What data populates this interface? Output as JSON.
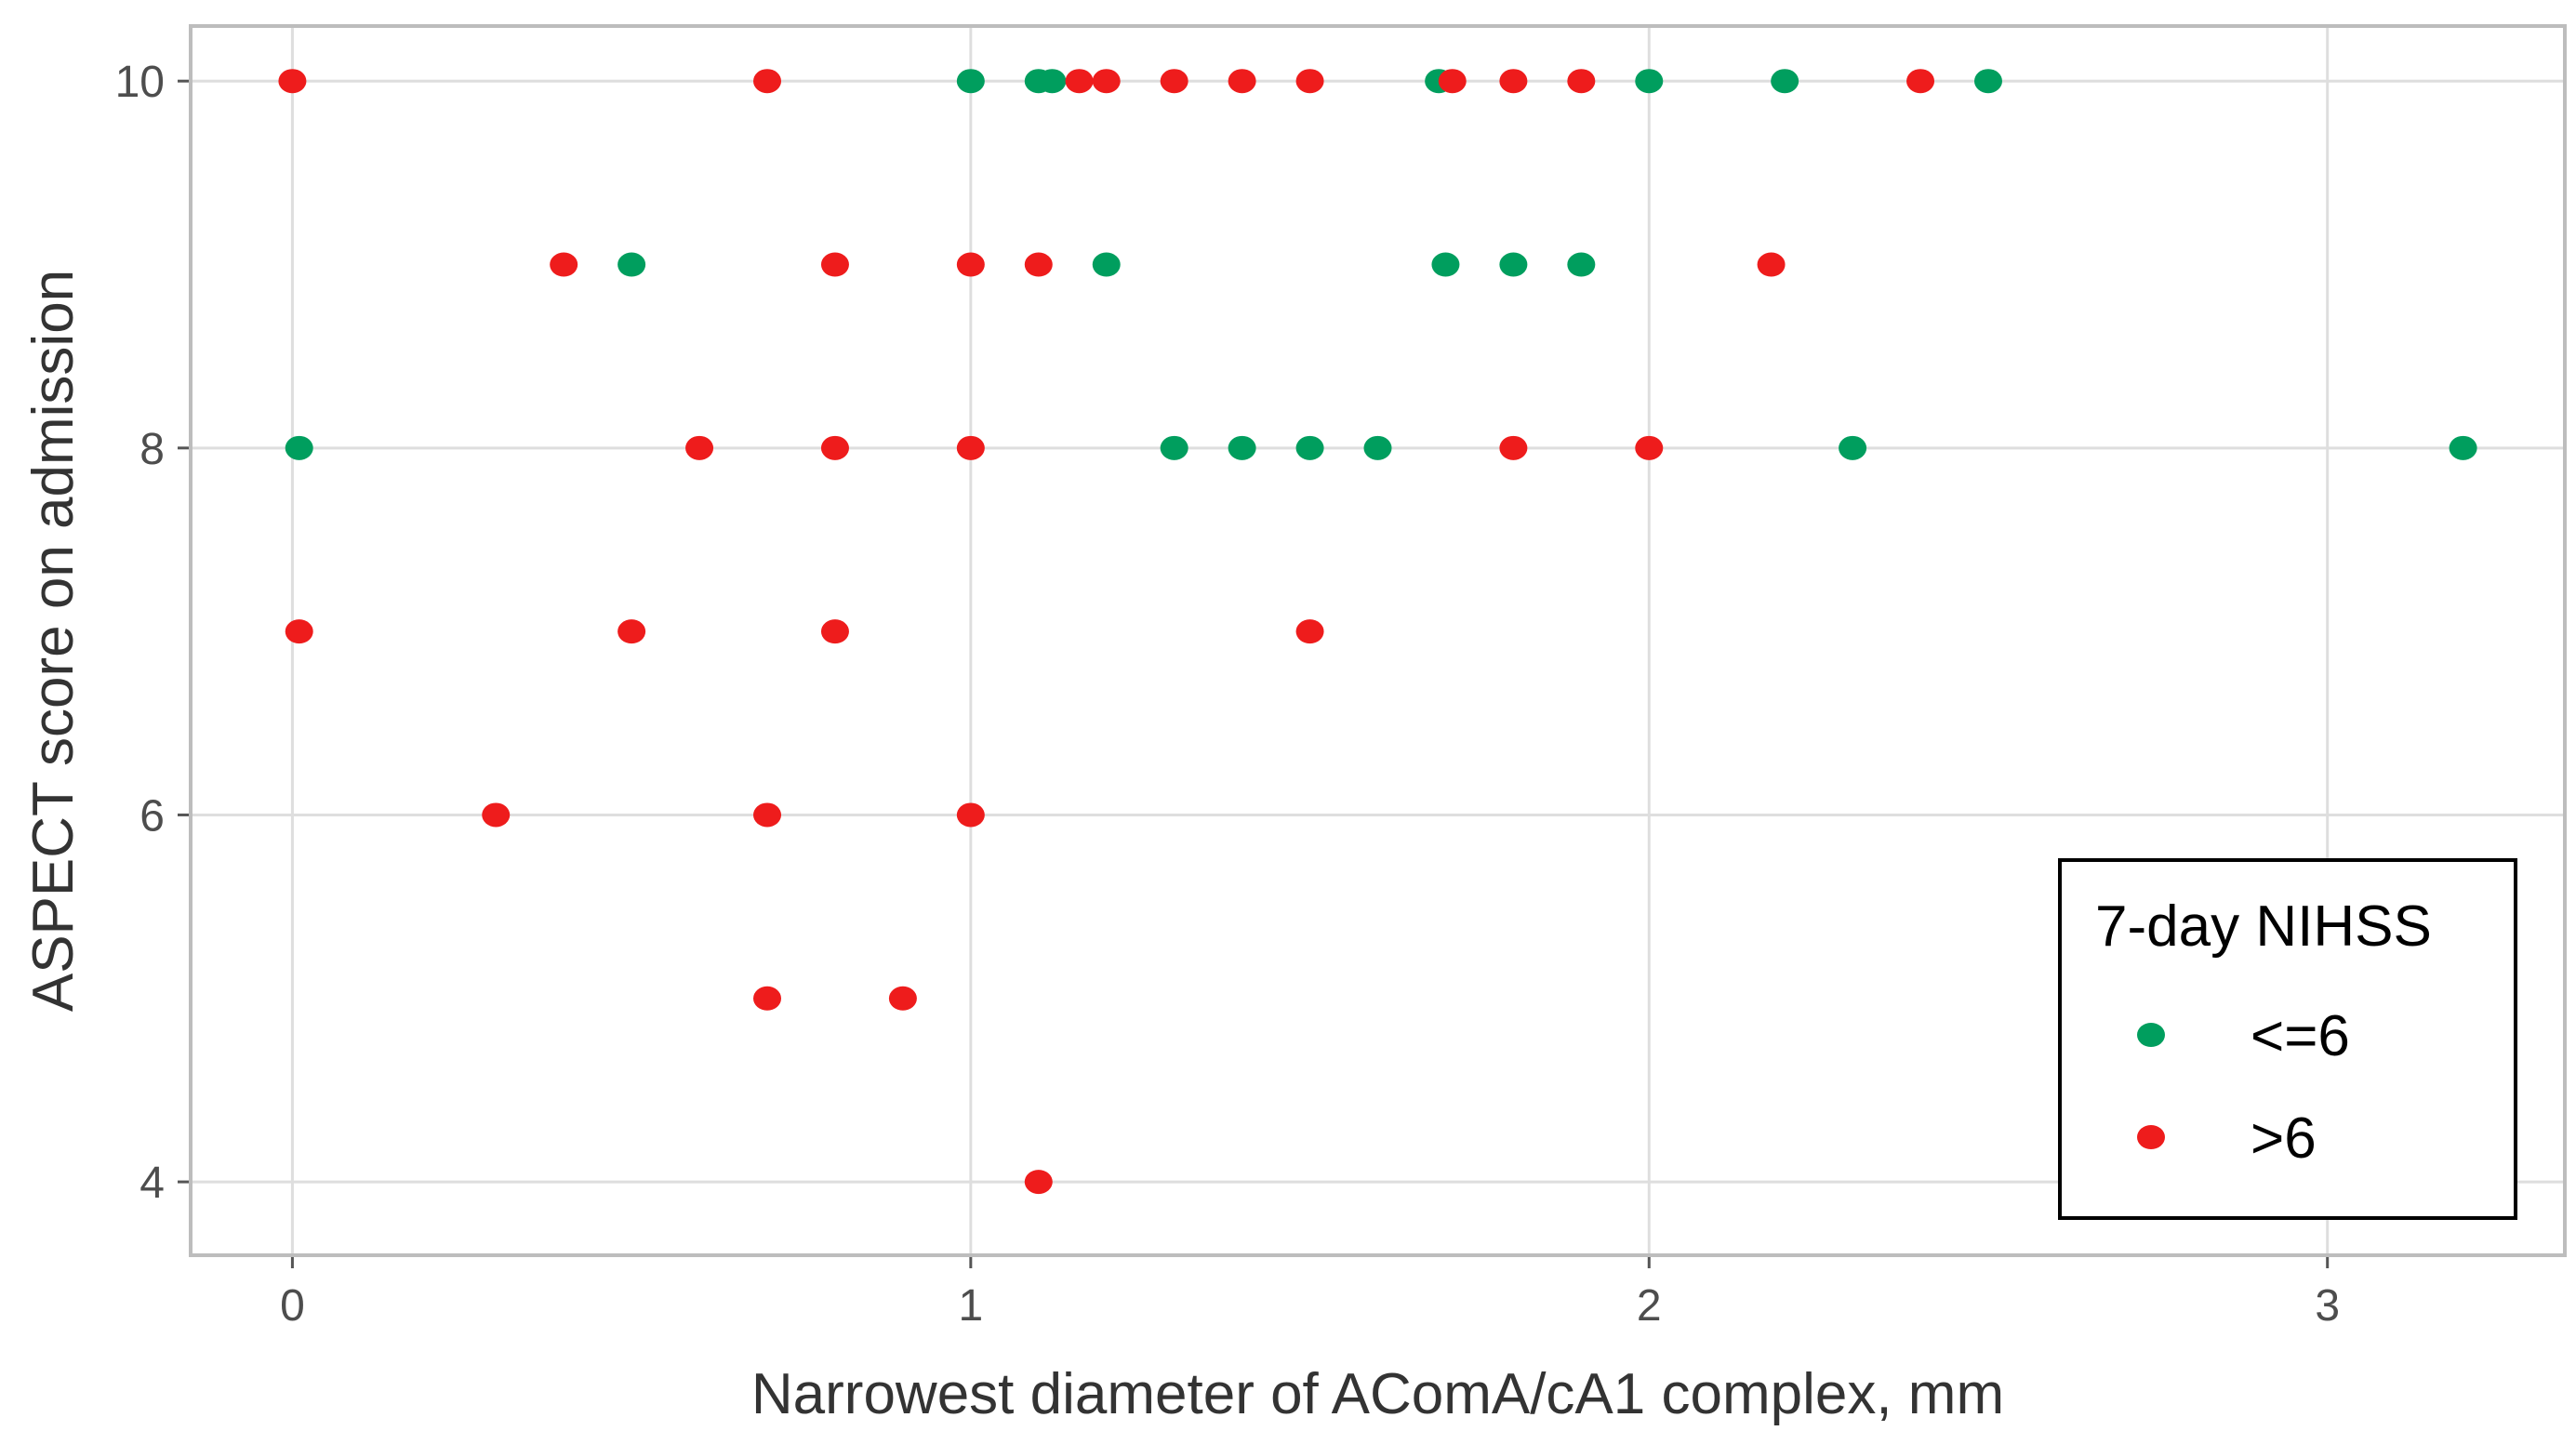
{
  "chart_data": {
    "type": "scatter",
    "title": "",
    "xlabel": "Narrowest diameter of AComA/cA1 complex, mm",
    "ylabel": "ASPECT score on admission",
    "xlim": [
      -0.15,
      3.35
    ],
    "ylim": [
      3.6,
      10.3
    ],
    "x_ticks": [
      0,
      1,
      2,
      3
    ],
    "y_ticks": [
      4,
      6,
      8,
      10
    ],
    "x_tick_labels": [
      "0",
      "1",
      "2",
      "3"
    ],
    "y_tick_labels": [
      "4",
      "6",
      "8",
      "10"
    ],
    "grid": true,
    "legend": {
      "title": "7-day NIHSS",
      "position": "bottom-right"
    },
    "series": [
      {
        "name": "<=6",
        "color": "#009e5e",
        "points": [
          [
            1.0,
            10
          ],
          [
            1.1,
            10
          ],
          [
            1.12,
            10
          ],
          [
            1.69,
            10
          ],
          [
            2.0,
            10
          ],
          [
            2.2,
            10
          ],
          [
            2.5,
            10
          ],
          [
            0.5,
            9
          ],
          [
            1.2,
            9
          ],
          [
            1.7,
            9
          ],
          [
            1.8,
            9
          ],
          [
            1.9,
            9
          ],
          [
            0.01,
            8
          ],
          [
            1.3,
            8
          ],
          [
            1.4,
            8
          ],
          [
            1.5,
            8
          ],
          [
            1.6,
            8
          ],
          [
            2.3,
            8
          ],
          [
            3.2,
            8
          ]
        ]
      },
      {
        "name": ">6",
        "color": "#ee1c1c",
        "points": [
          [
            0.0,
            10
          ],
          [
            0.7,
            10
          ],
          [
            1.16,
            10
          ],
          [
            1.2,
            10
          ],
          [
            1.3,
            10
          ],
          [
            1.4,
            10
          ],
          [
            1.5,
            10
          ],
          [
            1.71,
            10
          ],
          [
            1.8,
            10
          ],
          [
            1.9,
            10
          ],
          [
            2.4,
            10
          ],
          [
            0.4,
            9
          ],
          [
            0.8,
            9
          ],
          [
            1.0,
            9
          ],
          [
            1.1,
            9
          ],
          [
            2.18,
            9
          ],
          [
            0.6,
            8
          ],
          [
            0.8,
            8
          ],
          [
            1.0,
            8
          ],
          [
            1.8,
            8
          ],
          [
            2.0,
            8
          ],
          [
            0.01,
            7
          ],
          [
            0.5,
            7
          ],
          [
            0.8,
            7
          ],
          [
            1.5,
            7
          ],
          [
            0.3,
            6
          ],
          [
            0.7,
            6
          ],
          [
            1.0,
            6
          ],
          [
            0.7,
            5
          ],
          [
            0.9,
            5
          ],
          [
            1.1,
            4
          ]
        ]
      }
    ]
  }
}
